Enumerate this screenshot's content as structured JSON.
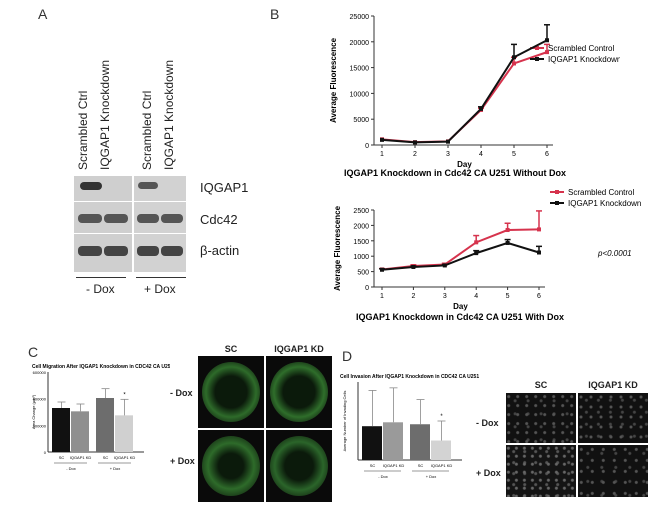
{
  "panel_letters": {
    "a": "A",
    "b": "B",
    "c": "C",
    "d": "D"
  },
  "blot": {
    "lanes": [
      "Scrambled Ctrl",
      "IQGAP1 Knockdown",
      "Scrambled Ctrl",
      "IQGAP1 Knockdown"
    ],
    "rows": [
      "IQGAP1",
      "Cdc42",
      "β-actin"
    ],
    "groups": [
      "- Dox",
      "+ Dox"
    ]
  },
  "chart_data": [
    {
      "type": "line",
      "title": "IQGAP1 Knockdown in Cdc42 CA U251 Without Dox",
      "xlabel": "Day",
      "ylabel": "Average Fluorescence",
      "ylim": [
        0,
        25000
      ],
      "yticks": [
        "0",
        "5000",
        "10000",
        "15000",
        "20000",
        "25000"
      ],
      "x": [
        1,
        2,
        3,
        4,
        5,
        6
      ],
      "series": [
        {
          "name": "Scrambled Control",
          "color": "#d6334d",
          "values": [
            1100,
            550,
            700,
            6800,
            15800,
            18000
          ],
          "err": [
            0,
            0,
            0,
            300,
            1200,
            1500
          ]
        },
        {
          "name": "IQGAP1 Knockdown",
          "color": "#111111",
          "values": [
            1000,
            500,
            650,
            7000,
            17000,
            20300
          ],
          "err": [
            0,
            0,
            0,
            400,
            2500,
            3000
          ]
        }
      ],
      "legend": "top-right"
    },
    {
      "type": "line",
      "title": "IQGAP1 Knockdown in Cdc42 CA U251 With Dox",
      "xlabel": "Day",
      "ylabel": "Average Fluorescence",
      "ylim": [
        0,
        2500
      ],
      "yticks": [
        "0",
        "500",
        "1000",
        "1500",
        "2000",
        "2500"
      ],
      "x": [
        1,
        2,
        3,
        4,
        5,
        6
      ],
      "series": [
        {
          "name": "Scrambled Control",
          "color": "#d6334d",
          "values": [
            570,
            680,
            730,
            1450,
            1850,
            1870
          ],
          "err": [
            30,
            40,
            40,
            220,
            220,
            600
          ]
        },
        {
          "name": "IQGAP1 Knockdown",
          "color": "#111111",
          "values": [
            560,
            650,
            700,
            1100,
            1430,
            1120
          ],
          "err": [
            30,
            30,
            30,
            80,
            110,
            200
          ]
        }
      ],
      "annotation": "p<0.0001",
      "legend": "top-right"
    },
    {
      "type": "bar",
      "title": "Cell Migration After IQGAP1 Knockdown in CDC42 CA U251",
      "ylabel": "Area Change (μm²)",
      "yticks": [
        "0",
        "200000",
        "400000",
        "600000"
      ],
      "ylim": [
        0,
        600000
      ],
      "categories": [
        "SC",
        "IQGAP1 KD",
        "SC",
        "IQGAP1 KD"
      ],
      "groups": [
        "- Dox",
        "+ Dox"
      ],
      "values": [
        330000,
        305000,
        405000,
        275000
      ],
      "err": [
        45000,
        55000,
        70000,
        120000
      ],
      "colors": [
        "#111111",
        "#8f8f8f",
        "#6d6d6d",
        "#d0d0d0"
      ],
      "sig": "*"
    },
    {
      "type": "bar",
      "title": "Cell Invasion After IQGAP1 Knockdown in CDC42 CA U251",
      "ylabel": "Average Number of Invading Cells",
      "categories": [
        "SC",
        "IQGAP1 KD",
        "SC",
        "IQGAP1 KD"
      ],
      "groups": [
        "- Dox",
        "+ Dox"
      ],
      "values": [
        0.52,
        0.58,
        0.55,
        0.3
      ],
      "err": [
        0.55,
        0.53,
        0.38,
        0.3
      ],
      "colors": [
        "#111111",
        "#9a9a9a",
        "#6d6d6d",
        "#d3d3d3"
      ],
      "sig": "*"
    }
  ],
  "micro_c": {
    "cols": [
      "SC",
      "IQGAP1 KD"
    ],
    "rows": [
      "- Dox",
      "+ Dox"
    ]
  },
  "micro_d": {
    "cols": [
      "SC",
      "IQGAP1 KD"
    ],
    "rows": [
      "- Dox",
      "+ Dox"
    ]
  }
}
